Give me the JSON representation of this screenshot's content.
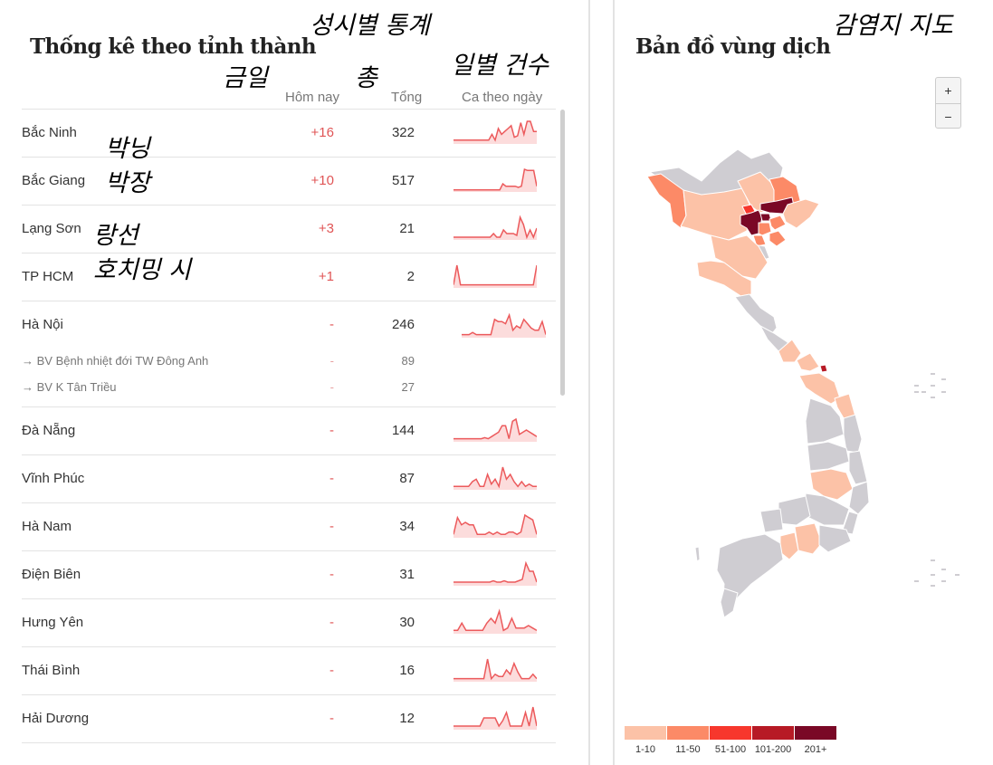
{
  "left_panel": {
    "title": "Thống kê theo tỉnh thành",
    "title_annotation": "성시별 통계",
    "columns": {
      "today": "Hôm nay",
      "today_annotation": "금일",
      "total": "Tổng",
      "total_annotation": "총",
      "daily": "Ca theo ngày",
      "daily_annotation": "일별 건수"
    },
    "rows": [
      {
        "name": "Bắc Ninh",
        "annotation": "박닝",
        "today": "+16",
        "total": "322",
        "spark": [
          2,
          2,
          2,
          2,
          2,
          2,
          2,
          2,
          2,
          2,
          2,
          2,
          6,
          2,
          10,
          6,
          8,
          10,
          12,
          4,
          5,
          14,
          6,
          15,
          15,
          8,
          8
        ]
      },
      {
        "name": "Bắc Giang",
        "annotation": "박장",
        "today": "+10",
        "total": "517",
        "spark": [
          1,
          1,
          1,
          1,
          1,
          1,
          1,
          1,
          1,
          1,
          1,
          1,
          1,
          1,
          1,
          1,
          6,
          4,
          4,
          4,
          4,
          3,
          4,
          18,
          17,
          17,
          17,
          4
        ]
      },
      {
        "name": "Lạng Sơn",
        "annotation": "랑선",
        "today": "+3",
        "total": "21",
        "spark": [
          1,
          1,
          1,
          1,
          1,
          1,
          1,
          1,
          1,
          1,
          1,
          1,
          3,
          1,
          1,
          5,
          3,
          3,
          3,
          2,
          12,
          8,
          1,
          5,
          1,
          6
        ]
      },
      {
        "name": "TP HCM",
        "annotation": "호치밍 시",
        "today": "+1",
        "total": "2",
        "spark": [
          1,
          10,
          1,
          1,
          1,
          1,
          1,
          1,
          1,
          1,
          1,
          1,
          1,
          1,
          1,
          1,
          1,
          1,
          1,
          1,
          1,
          1,
          1,
          1,
          10
        ]
      },
      {
        "name": "Hà Nội",
        "today": "-",
        "total": "246",
        "spark": [
          1,
          1,
          1,
          2,
          1,
          1,
          1,
          1,
          1,
          8,
          7,
          7,
          6,
          10,
          3,
          5,
          4,
          8,
          6,
          4,
          3,
          3,
          7,
          1
        ],
        "sub": [
          {
            "name": "→ BV Bệnh nhiệt đới TW Đông Anh",
            "today": "-",
            "total": "89"
          },
          {
            "name": "→ BV K Tân Triều",
            "today": "-",
            "total": "27"
          }
        ]
      },
      {
        "name": "Đà Nẵng",
        "today": "-",
        "total": "144",
        "spark": [
          1,
          1,
          1,
          1,
          1,
          1,
          1,
          1,
          1,
          1.5,
          1,
          2,
          3,
          4,
          7,
          7,
          1,
          9,
          10,
          3,
          4,
          5,
          4,
          3,
          2
        ]
      },
      {
        "name": "Vĩnh Phúc",
        "today": "-",
        "total": "87",
        "spark": [
          1,
          1,
          1,
          1,
          1,
          3,
          4,
          1,
          1,
          6,
          2,
          4,
          1,
          9,
          4,
          6,
          3,
          1,
          3,
          1,
          2,
          1,
          1
        ]
      },
      {
        "name": "Hà Nam",
        "today": "-",
        "total": "34",
        "spark": [
          1,
          8,
          5,
          6,
          5,
          5,
          1,
          1,
          1,
          2,
          1,
          2,
          1,
          1,
          2,
          2,
          1,
          2,
          9,
          8,
          7,
          1
        ]
      },
      {
        "name": "Điện Biên",
        "today": "-",
        "total": "31",
        "spark": [
          1,
          1,
          1,
          1,
          1,
          1,
          1,
          1,
          1,
          1,
          1,
          1.5,
          1,
          1,
          1.5,
          1,
          1,
          1,
          1.5,
          2,
          8,
          5,
          5,
          1
        ]
      },
      {
        "name": "Hưng Yên",
        "today": "-",
        "total": "30",
        "spark": [
          1,
          1,
          4,
          1,
          1,
          1,
          1,
          1,
          4,
          6,
          4,
          9,
          1,
          2,
          6,
          2,
          2,
          2,
          3,
          2,
          1
        ]
      },
      {
        "name": "Thái Bình",
        "today": "-",
        "total": "16",
        "spark": [
          1,
          1,
          1,
          1,
          1,
          1,
          1,
          1,
          1,
          10,
          1,
          3,
          2,
          2,
          5,
          3,
          8,
          4,
          1,
          1,
          1,
          3,
          1
        ]
      },
      {
        "name": "Hải Dương",
        "today": "-",
        "total": "12",
        "spark": [
          1,
          1,
          1,
          1,
          1,
          1,
          1,
          1,
          4,
          4,
          4,
          4,
          1,
          3,
          6,
          1,
          1,
          1,
          1,
          6,
          1,
          8,
          1
        ]
      }
    ]
  },
  "right_panel": {
    "title": "Bản đồ vùng dịch",
    "title_annotation": "감염지 지도",
    "zoom_in": "+",
    "zoom_out": "−",
    "legend": [
      {
        "label": "1-10",
        "color": "#fcc2a7"
      },
      {
        "label": "11-50",
        "color": "#fc8a67"
      },
      {
        "label": "51-100",
        "color": "#f7372d"
      },
      {
        "label": "101-200",
        "color": "#b71a25"
      },
      {
        "label": "201+",
        "color": "#7a0826"
      }
    ],
    "no_data_color": "#cfcdd2"
  },
  "colors": {
    "spark_line": "#ec5a5c",
    "spark_fill": "#fcdcdc",
    "today_text": "#e05556"
  }
}
